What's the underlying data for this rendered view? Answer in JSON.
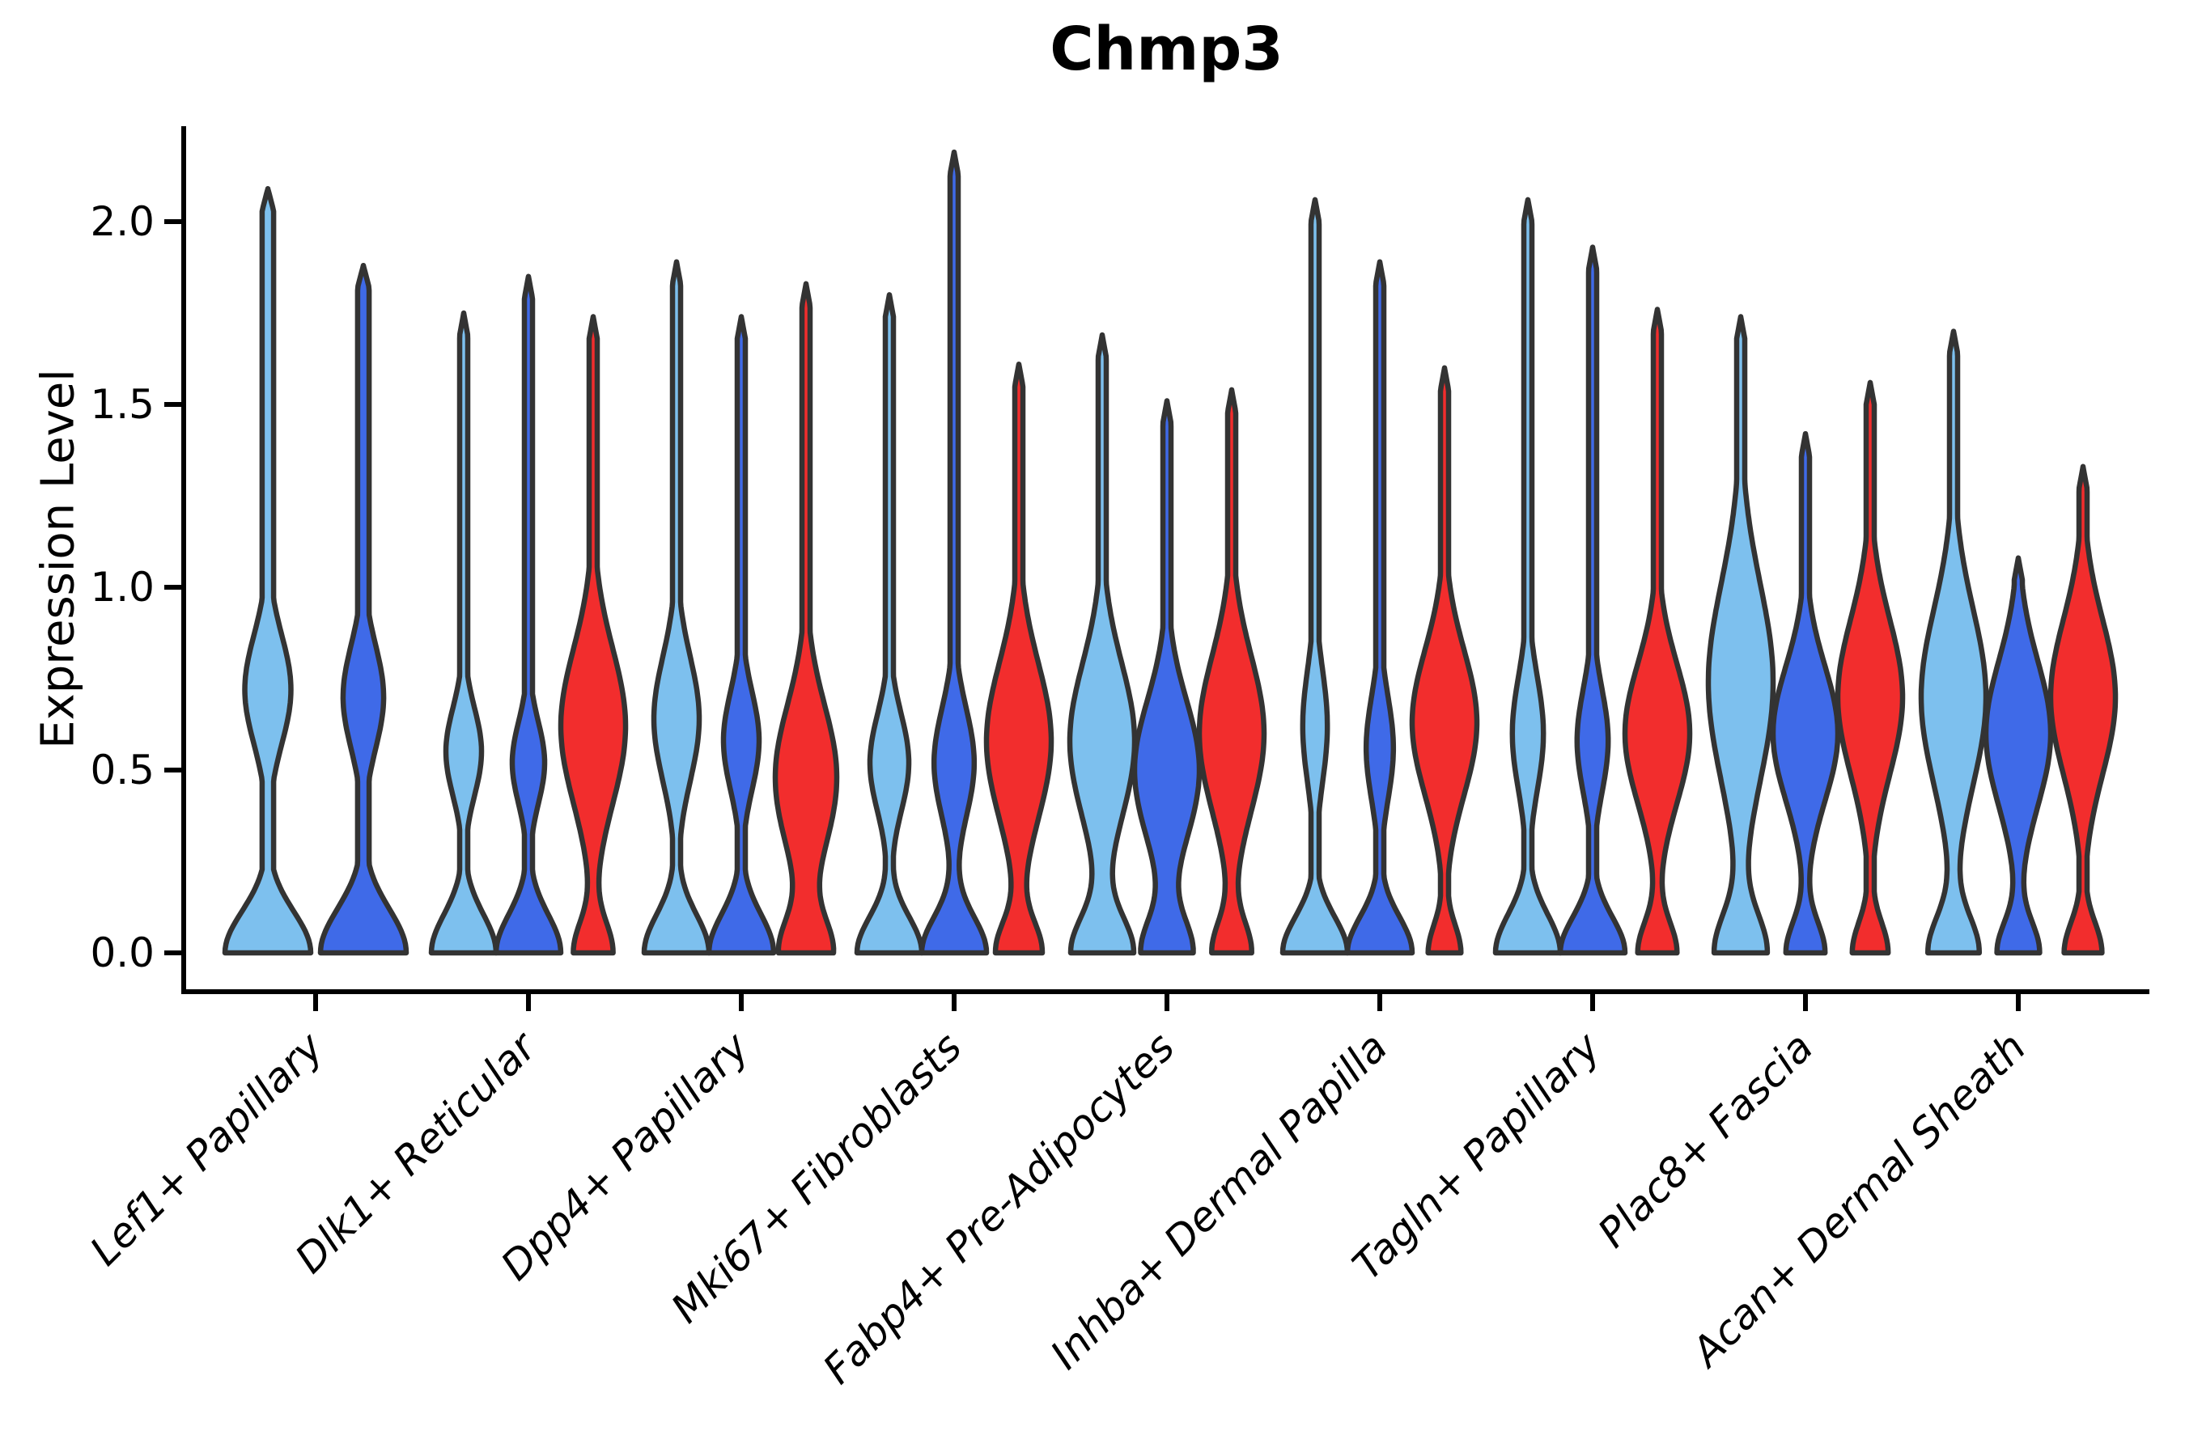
{
  "title": "Chmp3",
  "y_axis": {
    "label": "Expression Level",
    "ticks": [
      0.0,
      0.5,
      1.0,
      1.5,
      2.0
    ],
    "range": [
      -0.106,
      2.26
    ]
  },
  "palette": {
    "light_blue": "#7DC0EE",
    "dark_blue": "#3F6AE8",
    "red": "#F22D2D",
    "outline": "#333333",
    "axis": "#000000"
  },
  "chart_data": {
    "type": "violin",
    "title": "Chmp3",
    "ylabel": "Expression Level",
    "ylim": [
      -0.106,
      2.26
    ],
    "yticks": [
      "0.0",
      "0.5",
      "1.0",
      "1.5",
      "2.0"
    ],
    "ytick_values": [
      0.0,
      0.5,
      1.0,
      1.5,
      2.0
    ],
    "grid": false,
    "legend": "none",
    "series_hues": [
      "light_blue",
      "dark_blue",
      "red"
    ],
    "categories": [
      "Lef1+ Papillary",
      "Dlk1+ Reticular",
      "Dpp4+ Papillary",
      "Mki67+ Fibroblasts",
      "Fabp4+ Pre-Adipocytes",
      "Inhba+ Dermal Papilla",
      "Tagln+ Papillary",
      "Plac8+ Fascia",
      "Acan+ Dermal Sheath"
    ],
    "groups": [
      {
        "category": "Lef1+ Papillary",
        "violins": [
          {
            "hue": "light_blue",
            "max": 2.09,
            "base_a": 0.93,
            "base_s": 0.16,
            "bulge_m": 0.72,
            "bulge_a": 0.5,
            "bulge_s": 0.21
          },
          {
            "hue": "dark_blue",
            "max": 1.88,
            "base_a": 0.93,
            "base_s": 0.17,
            "bulge_m": 0.7,
            "bulge_a": 0.44,
            "bulge_s": 0.2
          }
        ]
      },
      {
        "category": "Dlk1+ Reticular",
        "violins": [
          {
            "hue": "light_blue",
            "max": 1.75,
            "base_a": 1.0,
            "base_s": 0.15,
            "bulge_m": 0.55,
            "bulge_a": 0.55,
            "bulge_s": 0.17
          },
          {
            "hue": "dark_blue",
            "max": 1.85,
            "base_a": 1.0,
            "base_s": 0.15,
            "bulge_m": 0.52,
            "bulge_a": 0.5,
            "bulge_s": 0.16
          },
          {
            "hue": "red",
            "max": 1.74,
            "base_a": 0.6,
            "base_s": 0.12,
            "bulge_m": 0.62,
            "bulge_a": 1.0,
            "bulge_s": 0.3
          }
        ]
      },
      {
        "category": "Dpp4+ Papillary",
        "violins": [
          {
            "hue": "light_blue",
            "max": 1.89,
            "base_a": 1.0,
            "base_s": 0.15,
            "bulge_m": 0.64,
            "bulge_a": 0.7,
            "bulge_s": 0.24
          },
          {
            "hue": "dark_blue",
            "max": 1.74,
            "base_a": 1.0,
            "base_s": 0.15,
            "bulge_m": 0.58,
            "bulge_a": 0.55,
            "bulge_s": 0.19
          },
          {
            "hue": "red",
            "max": 1.83,
            "base_a": 0.8,
            "base_s": 0.13,
            "bulge_m": 0.48,
            "bulge_a": 0.95,
            "bulge_s": 0.28
          }
        ]
      },
      {
        "category": "Mki67+ Fibroblasts",
        "violins": [
          {
            "hue": "light_blue",
            "max": 1.8,
            "base_a": 1.0,
            "base_s": 0.14,
            "bulge_m": 0.52,
            "bulge_a": 0.6,
            "bulge_s": 0.19
          },
          {
            "hue": "dark_blue",
            "max": 2.19,
            "base_a": 1.0,
            "base_s": 0.14,
            "bulge_m": 0.52,
            "bulge_a": 0.62,
            "bulge_s": 0.21
          },
          {
            "hue": "red",
            "max": 1.61,
            "base_a": 0.7,
            "base_s": 0.12,
            "bulge_m": 0.58,
            "bulge_a": 1.0,
            "bulge_s": 0.3
          }
        ]
      },
      {
        "category": "Fabp4+ Pre-Adipocytes",
        "violins": [
          {
            "hue": "light_blue",
            "max": 1.69,
            "base_a": 0.95,
            "base_s": 0.14,
            "bulge_m": 0.58,
            "bulge_a": 1.0,
            "bulge_s": 0.3
          },
          {
            "hue": "dark_blue",
            "max": 1.51,
            "base_a": 0.78,
            "base_s": 0.13,
            "bulge_m": 0.5,
            "bulge_a": 1.0,
            "bulge_s": 0.27
          },
          {
            "hue": "red",
            "max": 1.54,
            "base_a": 0.6,
            "base_s": 0.12,
            "bulge_m": 0.6,
            "bulge_a": 1.0,
            "bulge_s": 0.3
          }
        ]
      },
      {
        "category": "Inhba+ Dermal Papilla",
        "violins": [
          {
            "hue": "light_blue",
            "max": 2.06,
            "base_a": 1.0,
            "base_s": 0.14,
            "bulge_m": 0.62,
            "bulge_a": 0.38,
            "bulge_s": 0.22
          },
          {
            "hue": "dark_blue",
            "max": 1.89,
            "base_a": 1.0,
            "base_s": 0.14,
            "bulge_m": 0.56,
            "bulge_a": 0.42,
            "bulge_s": 0.2
          },
          {
            "hue": "red",
            "max": 1.6,
            "base_a": 0.5,
            "base_s": 0.11,
            "bulge_m": 0.63,
            "bulge_a": 1.0,
            "bulge_s": 0.28
          }
        ]
      },
      {
        "category": "Tagln+ Papillary",
        "violins": [
          {
            "hue": "light_blue",
            "max": 2.06,
            "base_a": 1.0,
            "base_s": 0.15,
            "bulge_m": 0.6,
            "bulge_a": 0.48,
            "bulge_s": 0.22
          },
          {
            "hue": "dark_blue",
            "max": 1.93,
            "base_a": 1.0,
            "base_s": 0.14,
            "bulge_m": 0.58,
            "bulge_a": 0.48,
            "bulge_s": 0.2
          },
          {
            "hue": "red",
            "max": 1.76,
            "base_a": 0.6,
            "base_s": 0.12,
            "bulge_m": 0.6,
            "bulge_a": 1.0,
            "bulge_s": 0.27
          }
        ]
      },
      {
        "category": "Plac8+ Fascia",
        "violins": [
          {
            "hue": "light_blue",
            "max": 1.74,
            "base_a": 0.8,
            "base_s": 0.15,
            "bulge_m": 0.74,
            "bulge_a": 1.0,
            "bulge_s": 0.38
          },
          {
            "hue": "dark_blue",
            "max": 1.42,
            "base_a": 0.6,
            "base_s": 0.12,
            "bulge_m": 0.6,
            "bulge_a": 1.0,
            "bulge_s": 0.26
          },
          {
            "hue": "red",
            "max": 1.56,
            "base_a": 0.55,
            "base_s": 0.12,
            "bulge_m": 0.7,
            "bulge_a": 1.0,
            "bulge_s": 0.3
          }
        ]
      },
      {
        "category": "Acan+ Dermal Sheath",
        "violins": [
          {
            "hue": "light_blue",
            "max": 1.7,
            "base_a": 0.78,
            "base_s": 0.14,
            "bulge_m": 0.7,
            "bulge_a": 1.0,
            "bulge_s": 0.34
          },
          {
            "hue": "dark_blue",
            "max": 1.08,
            "base_a": 0.65,
            "base_s": 0.12,
            "bulge_m": 0.6,
            "bulge_a": 1.0,
            "bulge_s": 0.28
          },
          {
            "hue": "red",
            "max": 1.33,
            "base_a": 0.58,
            "base_s": 0.12,
            "bulge_m": 0.7,
            "bulge_a": 1.0,
            "bulge_s": 0.3
          }
        ]
      }
    ]
  }
}
